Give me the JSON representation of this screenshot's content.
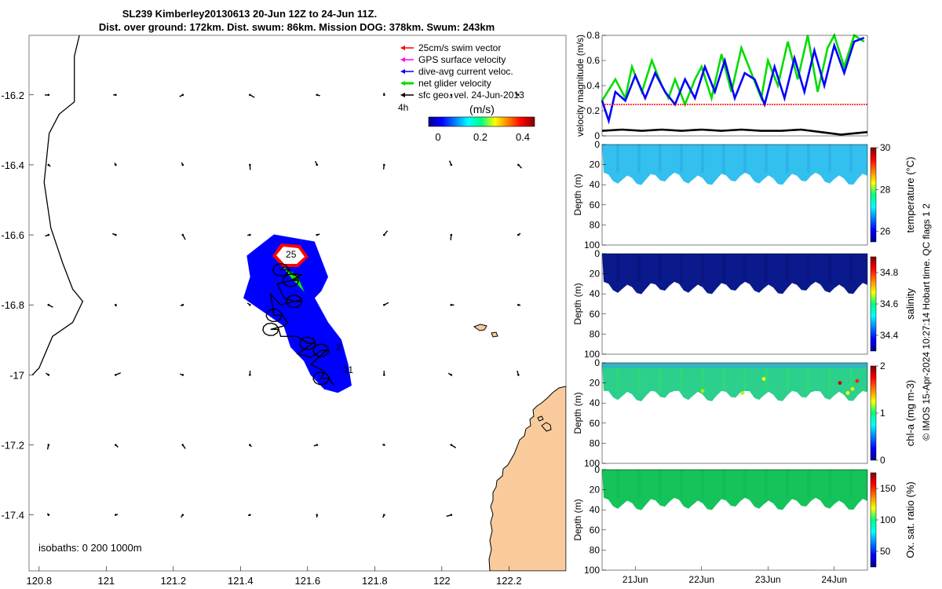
{
  "header": {
    "title_line1": "SL239 Kimberley20130613 20-Jun 12Z to 24-Jun 11Z.",
    "title_line2": "Dist. over ground: 172km. Dist. swum: 86km. Mission DOG: 378km. Swum: 243km"
  },
  "side_note": "© IMOS 15-Apr-2024 10:27:14 Hobart time. QC flags 1  2",
  "colors": {
    "swim": "#ff0000",
    "gps": "#ff00ff",
    "dive": "#0000ff",
    "net": "#00dd00",
    "sfc": "#000000",
    "land": "#f9cb9c",
    "glider_region": "#0000ff",
    "hist_white": "#ffffff",
    "hist_red": "#ff0000",
    "hist_green": "#00ff00"
  },
  "chart_data": [
    {
      "id": "map",
      "type": "map",
      "xlim": [
        120.77,
        122.37
      ],
      "ylim": [
        -17.56,
        -16.03
      ],
      "xticks": [
        120.8,
        121,
        121.2,
        121.4,
        121.6,
        121.8,
        122,
        122.2
      ],
      "xtick_labels": [
        "120.8",
        "121",
        "121.2",
        "121.4",
        "121.6",
        "121.8",
        "122",
        "122.2"
      ],
      "yticks": [
        -16.2,
        -16.4,
        -16.6,
        -16.8,
        -17.0,
        -17.2,
        -17.4
      ],
      "ytick_labels": [
        "-16.2",
        "-16.4",
        "-16.6",
        "-16.8",
        "-17",
        "-17.2",
        "-17.4"
      ],
      "legend": {
        "items": [
          {
            "label": "25cm/s swim vector",
            "color_key": "swim"
          },
          {
            "label": "GPS surface velocity",
            "color_key": "gps"
          },
          {
            "label": "dive-avg current veloc.",
            "color_key": "dive"
          },
          {
            "label": "net glider velocity",
            "color_key": "net"
          },
          {
            "label": "sfc geo. vel. 24-Jun-2013",
            "color_key": "sfc"
          }
        ],
        "interval_label": "4h",
        "colorbar_title": "(m/s)",
        "colorbar_ticks": [
          "0",
          "0.2",
          "0.4"
        ],
        "colorbar_range": [
          0,
          0.5
        ]
      },
      "isobath_label": "isobaths: 0   200  1000m",
      "day_labels": [
        {
          "text": "25",
          "lon": 121.535,
          "lat": -16.665
        },
        {
          "text": "2",
          "lon": 121.685,
          "lat": -16.93
        },
        {
          "text": "21",
          "lon": 121.705,
          "lat": -16.995
        }
      ],
      "coastline_1000m": [
        [
          120.92,
          -16.03
        ],
        [
          120.905,
          -16.09
        ],
        [
          120.905,
          -16.22
        ],
        [
          120.86,
          -16.255
        ],
        [
          120.83,
          -16.31
        ],
        [
          120.815,
          -16.45
        ],
        [
          120.835,
          -16.58
        ],
        [
          120.87,
          -16.68
        ],
        [
          120.9,
          -16.755
        ],
        [
          120.93,
          -16.79
        ],
        [
          120.9,
          -16.85
        ],
        [
          120.84,
          -16.89
        ],
        [
          120.8,
          -16.98
        ],
        [
          120.78,
          -17.0
        ]
      ],
      "glider_region": [
        [
          121.42,
          -16.66
        ],
        [
          121.5,
          -16.6
        ],
        [
          121.62,
          -16.62
        ],
        [
          121.66,
          -16.72
        ],
        [
          121.64,
          -16.76
        ],
        [
          121.62,
          -16.78
        ],
        [
          121.66,
          -16.85
        ],
        [
          121.7,
          -16.9
        ],
        [
          121.72,
          -16.97
        ],
        [
          121.73,
          -17.03
        ],
        [
          121.69,
          -17.05
        ],
        [
          121.65,
          -17.04
        ],
        [
          121.61,
          -17.0
        ],
        [
          121.59,
          -16.96
        ],
        [
          121.55,
          -16.92
        ],
        [
          121.53,
          -16.86
        ],
        [
          121.47,
          -16.82
        ],
        [
          121.41,
          -16.78
        ],
        [
          121.43,
          -16.72
        ]
      ],
      "track": [
        [
          121.53,
          -16.69
        ],
        [
          121.52,
          -16.7
        ],
        [
          121.55,
          -16.71
        ],
        [
          121.58,
          -16.715
        ],
        [
          121.55,
          -16.73
        ],
        [
          121.51,
          -16.74
        ],
        [
          121.53,
          -16.78
        ],
        [
          121.56,
          -16.79
        ],
        [
          121.52,
          -16.8
        ],
        [
          121.49,
          -16.77
        ],
        [
          121.5,
          -16.83
        ],
        [
          121.54,
          -16.85
        ],
        [
          121.53,
          -16.86
        ],
        [
          121.49,
          -16.87
        ],
        [
          121.52,
          -16.89
        ],
        [
          121.57,
          -16.89
        ],
        [
          121.6,
          -16.91
        ],
        [
          121.57,
          -16.94
        ],
        [
          121.61,
          -16.95
        ],
        [
          121.64,
          -16.93
        ],
        [
          121.61,
          -16.97
        ],
        [
          121.65,
          -16.99
        ],
        [
          121.64,
          -17.01
        ],
        [
          121.67,
          -17.02
        ],
        [
          121.68,
          -17.03
        ]
      ]
    },
    {
      "id": "velocity",
      "type": "line",
      "ylabel": "velocity magnitude (m/s)",
      "ylim": [
        0,
        0.8
      ],
      "yticks": [
        0,
        0.2,
        0.4,
        0.6,
        0.8
      ],
      "ytick_labels": [
        "0",
        "0.2",
        "0.4",
        "0.6",
        "0.8"
      ],
      "xlim": [
        20.5,
        24.5
      ],
      "xticks": [
        21.0,
        22.0,
        23.0,
        24.0
      ],
      "xtick_labels": [
        "21Jun",
        "22Jun",
        "23Jun",
        "24Jun"
      ],
      "series": [
        {
          "name": "net glider velocity",
          "color_key": "net",
          "x": [
            20.5,
            20.7,
            20.85,
            20.95,
            21.1,
            21.25,
            21.4,
            21.5,
            21.6,
            21.75,
            21.9,
            22.0,
            22.15,
            22.3,
            22.45,
            22.6,
            22.75,
            22.9,
            23.0,
            23.15,
            23.3,
            23.45,
            23.6,
            23.75,
            23.9,
            24.0,
            24.15,
            24.3,
            24.45
          ],
          "values": [
            0.28,
            0.45,
            0.3,
            0.55,
            0.35,
            0.6,
            0.4,
            0.3,
            0.45,
            0.25,
            0.45,
            0.55,
            0.3,
            0.65,
            0.35,
            0.7,
            0.5,
            0.3,
            0.6,
            0.4,
            0.75,
            0.45,
            0.8,
            0.35,
            0.7,
            0.8,
            0.55,
            0.8,
            0.75
          ]
        },
        {
          "name": "dive-avg current veloc.",
          "color_key": "dive",
          "x": [
            20.5,
            20.6,
            20.7,
            20.85,
            21.0,
            21.15,
            21.3,
            21.45,
            21.6,
            21.75,
            21.9,
            22.05,
            22.2,
            22.35,
            22.5,
            22.65,
            22.8,
            22.95,
            23.1,
            23.25,
            23.4,
            23.55,
            23.7,
            23.85,
            24.0,
            24.15,
            24.3,
            24.45
          ],
          "values": [
            0.28,
            0.12,
            0.35,
            0.28,
            0.48,
            0.3,
            0.5,
            0.35,
            0.25,
            0.45,
            0.3,
            0.55,
            0.35,
            0.6,
            0.3,
            0.5,
            0.45,
            0.25,
            0.55,
            0.3,
            0.62,
            0.35,
            0.68,
            0.4,
            0.72,
            0.5,
            0.75,
            0.78
          ]
        },
        {
          "name": "25cm/s swim vector",
          "color_key": "swim",
          "x": [
            20.5,
            24.5
          ],
          "values": [
            0.25,
            0.25
          ]
        },
        {
          "name": "sfc geo. vel.",
          "color_key": "sfc",
          "x": [
            20.5,
            20.8,
            21.1,
            21.4,
            21.7,
            22.0,
            22.3,
            22.6,
            22.9,
            23.2,
            23.5,
            23.8,
            24.1,
            24.3,
            24.5
          ],
          "values": [
            0.04,
            0.05,
            0.04,
            0.05,
            0.04,
            0.05,
            0.04,
            0.05,
            0.04,
            0.04,
            0.05,
            0.03,
            0.01,
            0.02,
            0.03
          ]
        }
      ]
    },
    {
      "id": "temperature",
      "type": "heatmap",
      "ylabel": "Depth (m)",
      "colorbar_label": "temperature (°C)",
      "ylim": [
        0,
        100
      ],
      "yticks": [
        0,
        20,
        40,
        60,
        80,
        100
      ],
      "ytick_labels": [
        "0",
        "20",
        "40",
        "60",
        "80",
        "100"
      ],
      "cbar_range": [
        25.5,
        30
      ],
      "cbar_ticks": [
        26,
        28,
        30
      ],
      "cbar_tick_labels": [
        "26",
        "28",
        "30"
      ],
      "typical_value": 27.5,
      "profile_max_depth": 40
    },
    {
      "id": "salinity",
      "type": "heatmap",
      "ylabel": "Depth (m)",
      "colorbar_label": "salinity",
      "ylim": [
        0,
        100
      ],
      "yticks": [
        0,
        20,
        40,
        60,
        80,
        100
      ],
      "ytick_labels": [
        "0",
        "20",
        "40",
        "60",
        "80",
        "100"
      ],
      "cbar_range": [
        34.3,
        34.9
      ],
      "cbar_ticks": [
        34.4,
        34.6,
        34.8
      ],
      "cbar_tick_labels": [
        "34.4",
        "34.6",
        "34.8"
      ],
      "typical_value": 34.3,
      "profile_max_depth": 40
    },
    {
      "id": "chla",
      "type": "heatmap",
      "ylabel": "Depth (m)",
      "colorbar_label": "chl-a (mg m-3)",
      "ylim": [
        0,
        100
      ],
      "yticks": [
        0,
        20,
        40,
        60,
        80,
        100
      ],
      "ytick_labels": [
        "0",
        "20",
        "40",
        "60",
        "80",
        "100"
      ],
      "cbar_range": [
        0,
        2
      ],
      "cbar_ticks": [
        0,
        1,
        2
      ],
      "cbar_tick_labels": [
        "0",
        "1",
        "2"
      ],
      "typical_value": 1.1,
      "profile_max_depth": 38
    },
    {
      "id": "oxygen",
      "type": "heatmap",
      "ylabel": "Depth (m)",
      "colorbar_label": "Ox. sat. ratio (%)",
      "ylim": [
        0,
        100
      ],
      "yticks": [
        0,
        20,
        40,
        60,
        80,
        100
      ],
      "ytick_labels": [
        "0",
        "20",
        "40",
        "60",
        "80",
        "100"
      ],
      "cbar_range": [
        25,
        175
      ],
      "cbar_ticks": [
        50,
        100,
        150
      ],
      "cbar_tick_labels": [
        "50",
        "100",
        "150"
      ],
      "typical_value": 100,
      "profile_max_depth": 40
    }
  ]
}
